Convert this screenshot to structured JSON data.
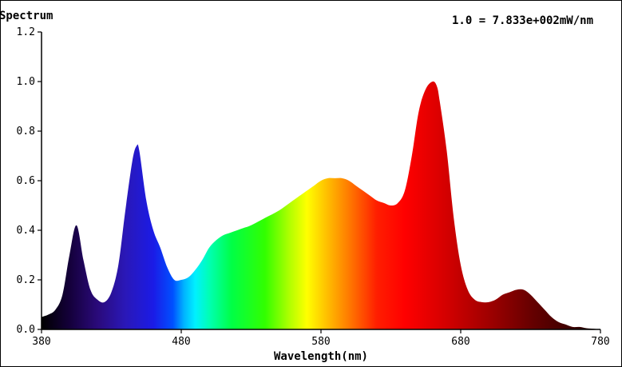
{
  "chart_data": {
    "type": "area",
    "title": "Spectrum",
    "scale_note": "1.0 = 7.833e+002mW/nm",
    "xlabel": "Wavelength(nm)",
    "ylabel": "",
    "xlim": [
      380,
      780
    ],
    "ylim": [
      0,
      1.2
    ],
    "x_ticks": [
      "380",
      "480",
      "580",
      "680",
      "780"
    ],
    "y_ticks": [
      "0.0",
      "0.2",
      "0.4",
      "0.6",
      "0.8",
      "1.0",
      "1.2"
    ],
    "grid": false,
    "legend": "none",
    "fill": "wavelength-colored spectrum",
    "series": [
      {
        "x": [
          380,
          385,
          390,
          395,
          400,
          405,
          410,
          415,
          420,
          425,
          430,
          435,
          440,
          445,
          448,
          450,
          455,
          460,
          465,
          470,
          475,
          480,
          485,
          490,
          495,
          500,
          505,
          510,
          515,
          520,
          525,
          530,
          540,
          550,
          560,
          570,
          575,
          580,
          585,
          590,
          595,
          600,
          605,
          610,
          615,
          620,
          625,
          630,
          635,
          640,
          645,
          650,
          655,
          660,
          663,
          665,
          670,
          675,
          680,
          685,
          690,
          695,
          700,
          705,
          710,
          715,
          720,
          725,
          730,
          735,
          740,
          745,
          750,
          755,
          760,
          765,
          770,
          775,
          780
        ],
        "values": [
          0.05,
          0.06,
          0.08,
          0.14,
          0.3,
          0.42,
          0.28,
          0.16,
          0.12,
          0.11,
          0.15,
          0.26,
          0.48,
          0.68,
          0.74,
          0.72,
          0.52,
          0.4,
          0.33,
          0.25,
          0.2,
          0.2,
          0.21,
          0.24,
          0.28,
          0.33,
          0.36,
          0.38,
          0.39,
          0.4,
          0.41,
          0.42,
          0.45,
          0.48,
          0.52,
          0.56,
          0.58,
          0.6,
          0.61,
          0.61,
          0.61,
          0.6,
          0.58,
          0.56,
          0.54,
          0.52,
          0.51,
          0.5,
          0.51,
          0.56,
          0.7,
          0.88,
          0.97,
          1.0,
          0.98,
          0.92,
          0.72,
          0.45,
          0.26,
          0.16,
          0.12,
          0.11,
          0.11,
          0.12,
          0.14,
          0.15,
          0.16,
          0.16,
          0.14,
          0.11,
          0.08,
          0.05,
          0.03,
          0.02,
          0.01,
          0.01,
          0.005,
          0.003,
          0.0
        ]
      }
    ]
  }
}
